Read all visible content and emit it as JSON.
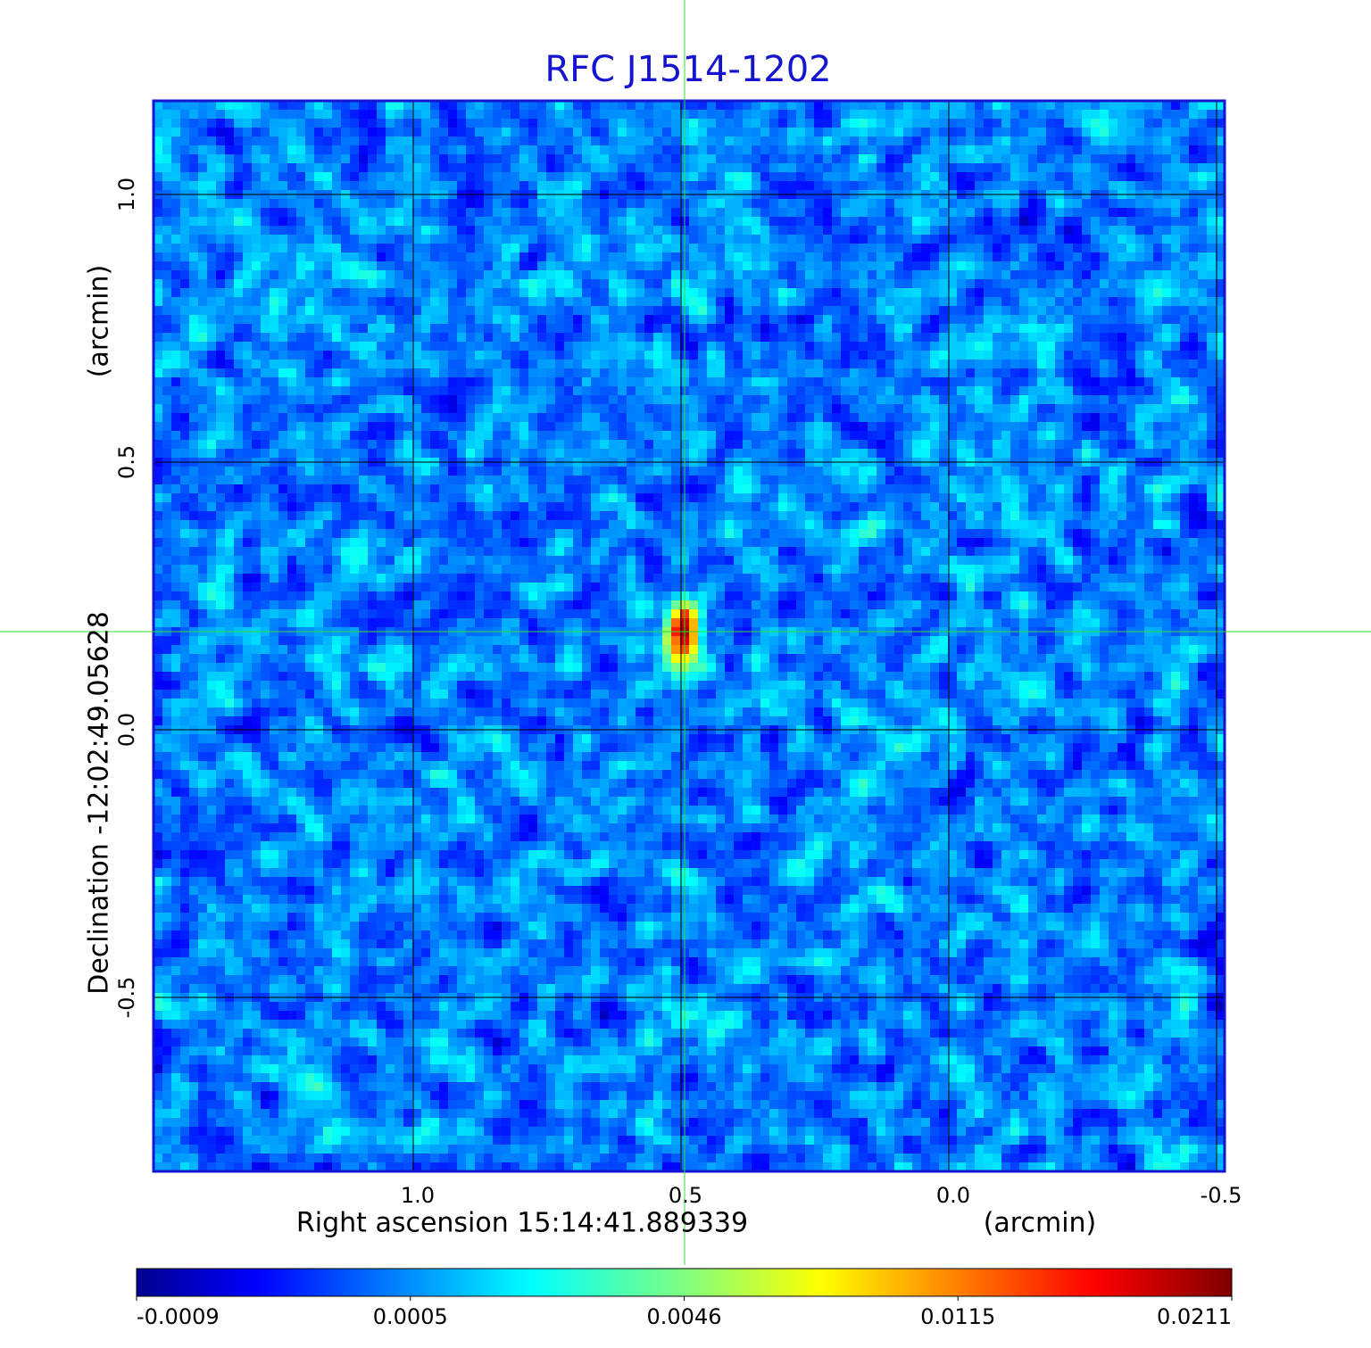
{
  "chart_data": {
    "type": "image",
    "title": "RFC J1514-1202",
    "x_label": "Right ascension  15:14:41.889339",
    "x_unit": "(arcmin)",
    "y_label": "Declination  -12:02:49.05628",
    "y_unit": "(arcmin)",
    "xlim": [
      1.485,
      -0.515
    ],
    "ylim": [
      -0.825,
      1.175
    ],
    "xticks": [
      {
        "value": 1,
        "label": "1.0"
      },
      0.5,
      {
        "value": 0,
        "label": "0.0"
      },
      -0.5
    ],
    "yticks": [
      -0.5,
      {
        "value": 0,
        "label": "0.0"
      },
      0.5,
      {
        "value": 1,
        "label": "1.0"
      }
    ],
    "grid": true,
    "colorbar_ticks": [
      -0.0009,
      0.0005,
      0.0046,
      0.0115,
      0.0211
    ]
  }
}
